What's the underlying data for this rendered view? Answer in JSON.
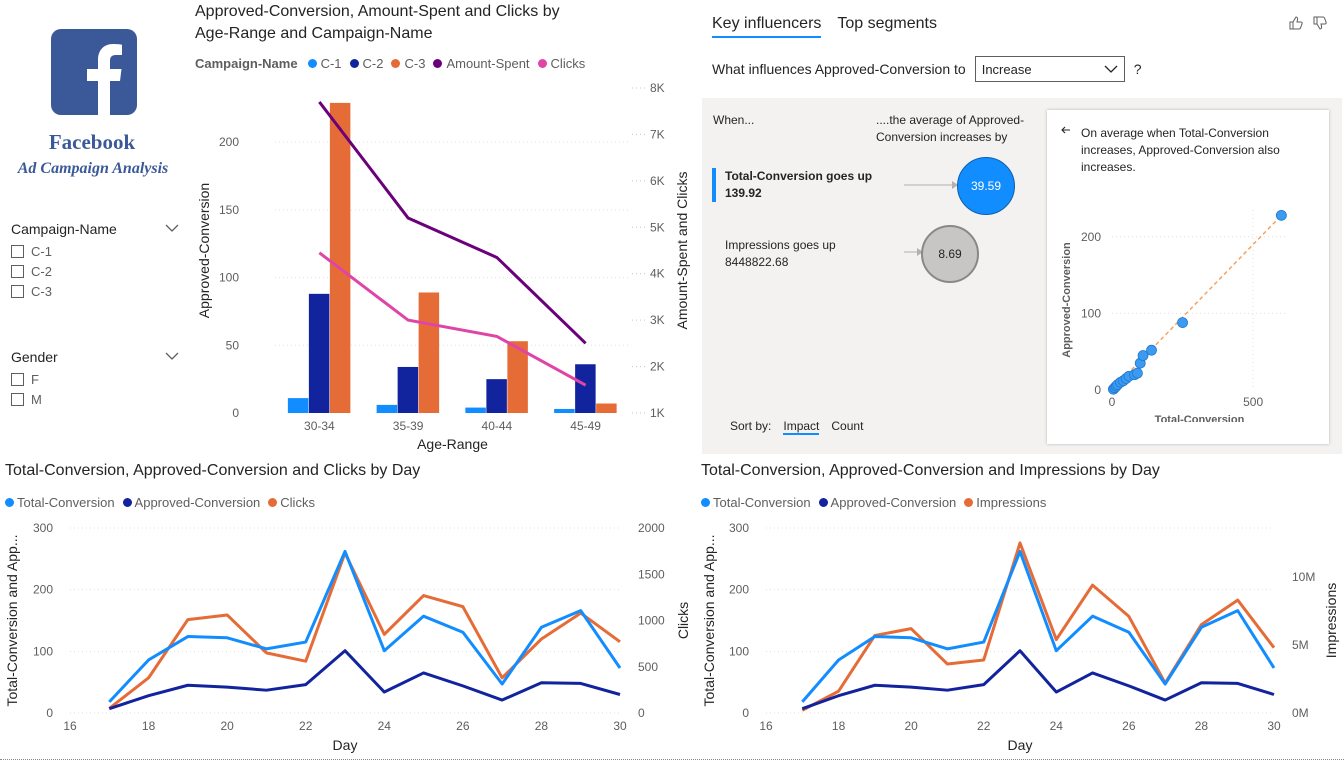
{
  "logo": {
    "title": "Facebook",
    "subtitle": "Ad Campaign Analysis",
    "brand_color": "#3b5998"
  },
  "slicers": [
    {
      "title": "Campaign-Name",
      "items": [
        "C-1",
        "C-2",
        "C-3"
      ]
    },
    {
      "title": "Gender",
      "items": [
        "F",
        "M"
      ]
    }
  ],
  "colors": {
    "c1": "#118dff",
    "c2": "#12239e",
    "c3": "#e66c37",
    "amount": "#6b007b",
    "clicks": "#e044a7"
  },
  "main_chart": {
    "title_line1": "Approved-Conversion, Amount-Spent and Clicks by",
    "title_line2": "Age-Range and Campaign-Name",
    "legend_title": "Campaign-Name",
    "legend": [
      "C-1",
      "C-2",
      "C-3",
      "Amount-Spent",
      "Clicks"
    ],
    "xlabel": "Age-Range",
    "ylabel_left": "Approved-Conversion",
    "ylabel_right": "Amount-Spent and Clicks",
    "y_ticks_left": [
      "0",
      "50",
      "100",
      "150",
      "200"
    ],
    "y_ticks_right": [
      "1K",
      "2K",
      "3K",
      "4K",
      "5K",
      "6K",
      "7K",
      "8K"
    ]
  },
  "ki": {
    "tab1": "Key influencers",
    "tab2": "Top segments",
    "question": "What influences Approved-Conversion to",
    "dropdown_value": "Increase",
    "help": "?",
    "when": "When...",
    "avg_line1": "....the average of Approved-",
    "avg_line2": "Conversion increases by",
    "influencers": [
      {
        "label": "Total-Conversion goes up",
        "value": "139.92",
        "impact": "39.59"
      },
      {
        "label": "Impressions goes up",
        "value": "8448822.68",
        "impact": "8.69"
      }
    ],
    "sort_by": "Sort by:",
    "sort_impact": "Impact",
    "sort_count": "Count",
    "detail_line1": "On average when Total-Conversion",
    "detail_line2": "increases, Approved-Conversion also",
    "detail_line3": "increases.",
    "scatter_xlabel": "Total-Conversion",
    "scatter_ylabel": "Approved-Conversion",
    "scatter_xticks": [
      "0",
      "500"
    ],
    "scatter_yticks": [
      "0",
      "100",
      "200"
    ],
    "scatter_points": [
      [
        5,
        1
      ],
      [
        10,
        3
      ],
      [
        15,
        5
      ],
      [
        20,
        7
      ],
      [
        30,
        10
      ],
      [
        40,
        12
      ],
      [
        50,
        15
      ],
      [
        60,
        18
      ],
      [
        80,
        20
      ],
      [
        90,
        22
      ],
      [
        100,
        35
      ],
      [
        110,
        45
      ],
      [
        140,
        52
      ],
      [
        250,
        88
      ],
      [
        600,
        228
      ]
    ]
  },
  "bottom_left": {
    "title": "Total-Conversion, Approved-Conversion and Clicks by Day",
    "legend": [
      "Total-Conversion",
      "Approved-Conversion",
      "Clicks"
    ],
    "xlabel": "Day",
    "ylabel_left": "Total-Conversion and App...",
    "ylabel_right": "Clicks",
    "x_ticks": [
      "16",
      "18",
      "20",
      "22",
      "24",
      "26",
      "28",
      "30"
    ],
    "y_ticks_left": [
      "0",
      "100",
      "200",
      "300"
    ],
    "y_ticks_right": [
      "0",
      "500",
      "1000",
      "1500",
      "2000"
    ]
  },
  "bottom_right": {
    "title": "Total-Conversion, Approved-Conversion and Impressions by Day",
    "legend": [
      "Total-Conversion",
      "Approved-Conversion",
      "Impressions"
    ],
    "xlabel": "Day",
    "ylabel_left": "Total-Conversion and App...",
    "ylabel_right": "Impressions",
    "x_ticks": [
      "16",
      "18",
      "20",
      "22",
      "24",
      "26",
      "28",
      "30"
    ],
    "y_ticks_left": [
      "0",
      "100",
      "200",
      "300"
    ],
    "y_ticks_right": [
      "0M",
      "5M",
      "10M"
    ]
  },
  "chart_data": [
    {
      "type": "bar",
      "title": "Approved-Conversion, Amount-Spent and Clicks by Age-Range and Campaign-Name",
      "categories": [
        "30-34",
        "35-39",
        "40-44",
        "45-49"
      ],
      "ylim": [
        0,
        240
      ],
      "y2lim": [
        1000,
        8000
      ],
      "series": [
        {
          "name": "C-1",
          "values": [
            11,
            6,
            4,
            3
          ]
        },
        {
          "name": "C-2",
          "values": [
            88,
            34,
            25,
            36
          ]
        },
        {
          "name": "C-3",
          "values": [
            229,
            89,
            53,
            7
          ]
        }
      ],
      "line_series": [
        {
          "name": "Amount-Spent",
          "values": [
            7700,
            5200,
            4350,
            2500
          ]
        },
        {
          "name": "Clicks",
          "values": [
            4450,
            3000,
            2650,
            1600
          ]
        }
      ]
    },
    {
      "type": "line",
      "title": "Total-Conversion, Approved-Conversion and Clicks by Day",
      "x": [
        17,
        18,
        19,
        20,
        21,
        22,
        23,
        24,
        25,
        26,
        27,
        28,
        29,
        30
      ],
      "xlim": [
        16,
        30
      ],
      "ylim": [
        0,
        300
      ],
      "y2lim": [
        0,
        2000
      ],
      "series": [
        {
          "name": "Total-Conversion",
          "axis": "left",
          "values": [
            18,
            86,
            124,
            122,
            104,
            115,
            262,
            101,
            157,
            131,
            47,
            139,
            166,
            73
          ]
        },
        {
          "name": "Approved-Conversion",
          "axis": "left",
          "values": [
            7,
            28,
            45,
            42,
            37,
            46,
            101,
            34,
            65,
            44,
            21,
            49,
            48,
            30
          ]
        },
        {
          "name": "Clicks",
          "axis": "right",
          "values": [
            50,
            380,
            1010,
            1060,
            650,
            560,
            1730,
            850,
            1270,
            1150,
            380,
            800,
            1080,
            770
          ]
        }
      ]
    },
    {
      "type": "line",
      "title": "Total-Conversion, Approved-Conversion and Impressions by Day",
      "x": [
        17,
        18,
        19,
        20,
        21,
        22,
        23,
        24,
        25,
        26,
        27,
        28,
        29,
        30
      ],
      "xlim": [
        16,
        30
      ],
      "ylim": [
        0,
        300
      ],
      "y2lim": [
        0,
        13600000
      ],
      "series": [
        {
          "name": "Total-Conversion",
          "axis": "left",
          "values": [
            18,
            86,
            124,
            122,
            104,
            115,
            262,
            101,
            157,
            131,
            47,
            139,
            166,
            73
          ]
        },
        {
          "name": "Approved-Conversion",
          "axis": "left",
          "values": [
            7,
            28,
            45,
            42,
            37,
            46,
            101,
            34,
            65,
            44,
            21,
            49,
            48,
            30
          ]
        },
        {
          "name": "Impressions",
          "axis": "right",
          "values": [
            200000,
            1600000,
            5700000,
            6200000,
            3600000,
            3900000,
            12500000,
            5400000,
            9400000,
            7100000,
            2200000,
            6500000,
            8300000,
            4800000
          ]
        }
      ]
    }
  ]
}
